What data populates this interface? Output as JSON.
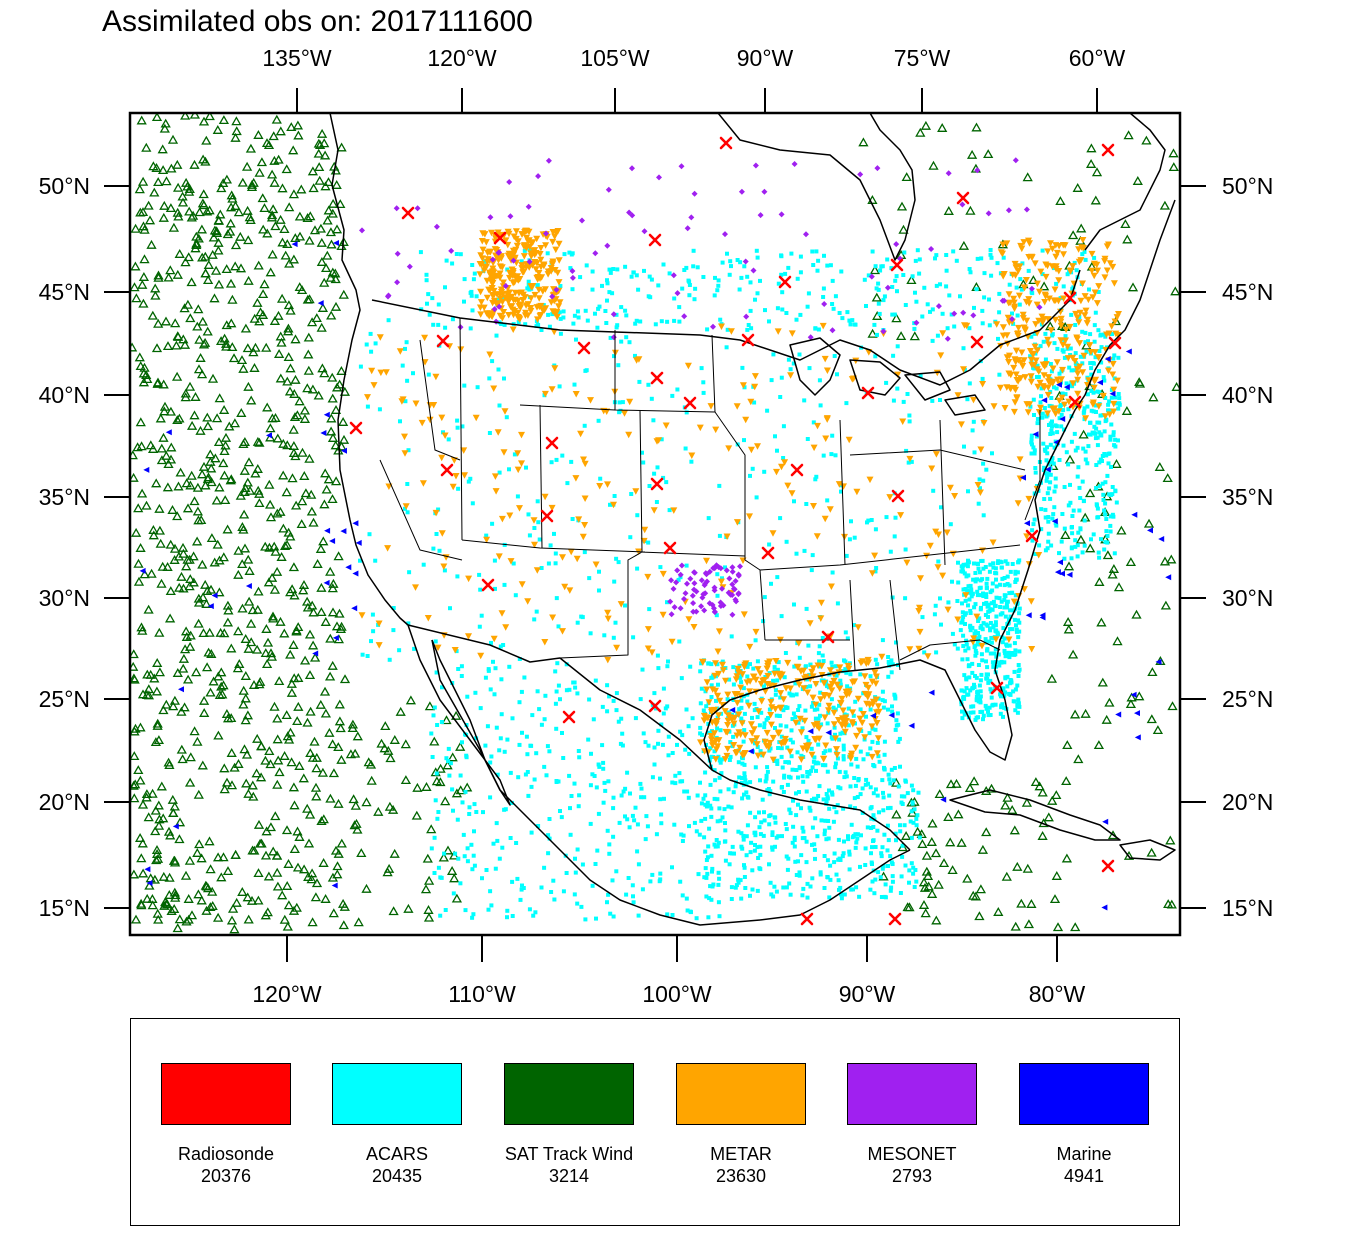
{
  "title": "Assimilated obs on: 2017111600",
  "top_longitude_labels": [
    "135°W",
    "120°W",
    "105°W",
    "90°W",
    "75°W",
    "60°W"
  ],
  "bottom_longitude_labels": [
    "120°W",
    "110°W",
    "100°W",
    "90°W",
    "80°W"
  ],
  "latitude_labels": [
    "50°N",
    "45°N",
    "40°N",
    "35°N",
    "30°N",
    "25°N",
    "20°N",
    "15°N"
  ],
  "legend": [
    {
      "label": "Radiosonde",
      "count": "20376",
      "color": "#ff0000"
    },
    {
      "label": "ACARS",
      "count": "20435",
      "color": "#00ffff"
    },
    {
      "label": "SAT Track Wind",
      "count": "3214",
      "color": "#006400"
    },
    {
      "label": "METAR",
      "count": "23630",
      "color": "#ffa500"
    },
    {
      "label": "MESONET",
      "count": "2793",
      "color": "#a020f0"
    },
    {
      "label": "Marine",
      "count": "4941",
      "color": "#0000ff"
    }
  ],
  "colors": {
    "radiosonde": "#ff0000",
    "acars": "#00ffff",
    "sat_track_wind": "#006400",
    "metar": "#ffa500",
    "mesonet": "#a020f0",
    "marine": "#0000ff",
    "coastline": "#000000",
    "frame": "#000000"
  }
}
